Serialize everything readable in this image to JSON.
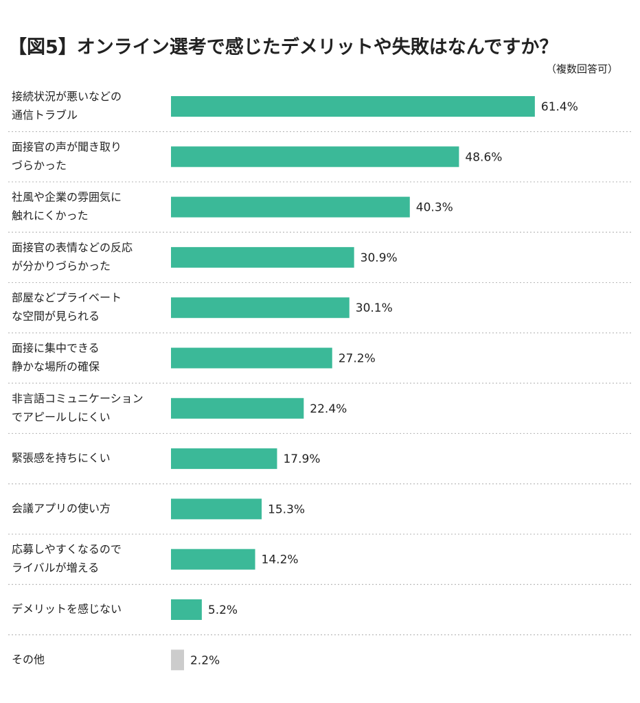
{
  "chart_data": {
    "type": "bar",
    "orientation": "horizontal",
    "title": "【図5】オンライン選考で感じたデメリットや失敗はなんですか？",
    "subtitle": "（複数回答可）",
    "categories": [
      [
        "接続状況が悪いなどの",
        "通信トラブル"
      ],
      [
        "面接官の声が聞き取り",
        "づらかった"
      ],
      [
        "社風や企業の雰囲気に",
        "触れにくかった"
      ],
      [
        "面接官の表情などの反応",
        "が分かりづらかった"
      ],
      [
        "部屋などプライベート",
        "な空間が見られる"
      ],
      [
        "面接に集中できる",
        "静かな場所の確保"
      ],
      [
        "非言語コミュニケーション",
        "でアピールしにくい"
      ],
      [
        "緊張感を持ちにくい"
      ],
      [
        "会議アプリの使い方"
      ],
      [
        "応募しやすくなるので",
        "ライバルが増える"
      ],
      [
        "デメリットを感じない"
      ],
      [
        "その他"
      ]
    ],
    "values": [
      61.4,
      48.6,
      40.3,
      30.9,
      30.1,
      27.2,
      22.4,
      17.9,
      15.3,
      14.2,
      5.2,
      2.2
    ],
    "value_labels": [
      "61.4%",
      "48.6%",
      "40.3%",
      "30.9%",
      "30.1%",
      "27.2%",
      "22.4%",
      "17.9%",
      "15.3%",
      "14.2%",
      "5.2%",
      "2.2%"
    ],
    "colors": [
      "#3bb998",
      "#3bb998",
      "#3bb998",
      "#3bb998",
      "#3bb998",
      "#3bb998",
      "#3bb998",
      "#3bb998",
      "#3bb998",
      "#3bb998",
      "#3bb998",
      "#cccccc"
    ]
  }
}
